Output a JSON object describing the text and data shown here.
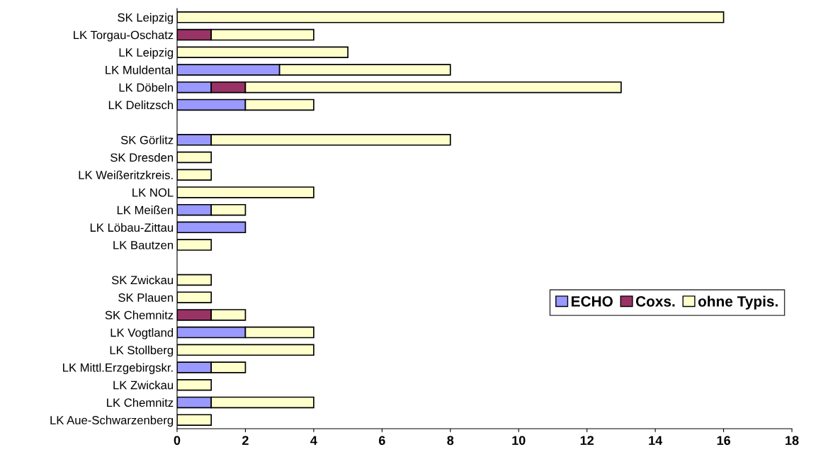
{
  "chart_data": {
    "type": "bar",
    "orientation": "horizontal",
    "stacked": true,
    "categories": [
      "SK Leipzig",
      "LK Torgau-Oschatz",
      "LK Leipzig",
      "LK Muldental",
      "LK Döbeln",
      "LK Delitzsch",
      null,
      "SK Görlitz",
      "SK Dresden",
      "LK Weißeritzkreis.",
      "LK NOL",
      "LK Meißen",
      "LK Löbau-Zittau",
      "LK Bautzen",
      null,
      "SK Zwickau",
      "SK Plauen",
      "SK Chemnitz",
      "LK Vogtland",
      "LK Stollberg",
      "LK Mittl.Erzgebirgskr.",
      "LK Zwickau",
      "LK Chemnitz",
      "LK Aue-Schwarzenberg"
    ],
    "series": [
      {
        "name": "ECHO",
        "color": "#9999ff",
        "values": [
          null,
          null,
          null,
          3,
          1,
          2,
          null,
          1,
          null,
          null,
          null,
          1,
          2,
          null,
          null,
          null,
          null,
          null,
          2,
          null,
          1,
          null,
          1,
          null
        ]
      },
      {
        "name": "Coxs.",
        "color": "#993366",
        "values": [
          null,
          1,
          null,
          null,
          1,
          null,
          null,
          null,
          null,
          null,
          null,
          null,
          null,
          null,
          null,
          null,
          null,
          1,
          null,
          null,
          null,
          null,
          null,
          null
        ]
      },
      {
        "name": "ohne Typis.",
        "color": "#ffffcc",
        "values": [
          16,
          3,
          5,
          5,
          11,
          2,
          null,
          7,
          1,
          1,
          4,
          1,
          null,
          1,
          null,
          1,
          1,
          1,
          2,
          4,
          1,
          1,
          3,
          1
        ]
      }
    ],
    "xlim": [
      0,
      18
    ],
    "xticks": [
      0,
      2,
      4,
      6,
      8,
      10,
      12,
      14,
      16,
      18
    ],
    "grid": false,
    "legend": "right"
  }
}
